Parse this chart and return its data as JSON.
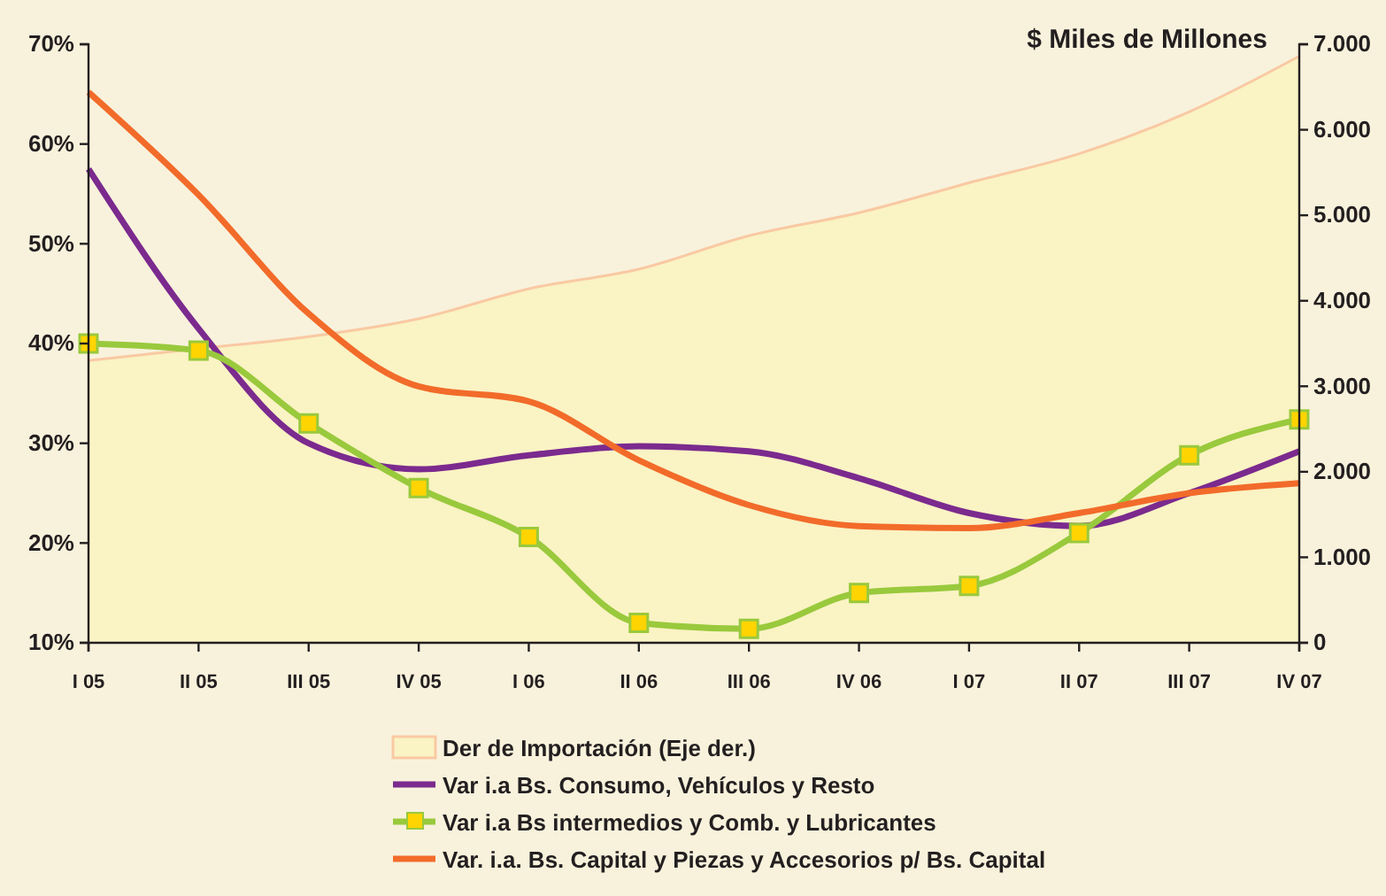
{
  "chart_data": {
    "type": "line",
    "categories": [
      "I 05",
      "II 05",
      "III 05",
      "IV 05",
      "I 06",
      "II 06",
      "III 06",
      "IV 06",
      "I 07",
      "II 07",
      "III 07",
      "IV 07"
    ],
    "series": [
      {
        "name": "Der de Importación (Eje der.)",
        "type": "area",
        "axis": "y2",
        "color": "#f9c9a3",
        "values": [
          3300,
          3440,
          3580,
          3790,
          4140,
          4370,
          4760,
          5030,
          5380,
          5720,
          6210,
          6860
        ]
      },
      {
        "name": "Var i.a  Bs. Consumo, Vehículos y Resto",
        "color": "#7b2a8e",
        "marker": "none",
        "values": [
          57.5,
          41.5,
          30,
          27.4,
          28.8,
          29.7,
          29.2,
          26.5,
          23,
          21.7,
          25,
          29.2
        ]
      },
      {
        "name": "Var i.a  Bs intermedios y Comb. y Lubricantes",
        "color": "#99c93c",
        "marker": "square",
        "values": [
          40,
          39.3,
          32,
          25.5,
          20.6,
          12,
          11.4,
          15,
          15.7,
          21,
          28.8,
          32.4
        ]
      },
      {
        "name": "Var. i.a. Bs. Capital y Piezas y Accesorios p/ Bs. Capital",
        "color": "#f26b2a",
        "marker": "none",
        "values": [
          65.2,
          54.9,
          43,
          35.7,
          34.2,
          28.3,
          23.8,
          21.7,
          21.5,
          23,
          25,
          26
        ]
      }
    ],
    "ylim": [
      10,
      70
    ],
    "yticks": [
      {
        "value": 10,
        "label": "10%"
      },
      {
        "value": 20,
        "label": "20%"
      },
      {
        "value": 30,
        "label": "30%"
      },
      {
        "value": 40,
        "label": "40%"
      },
      {
        "value": 50,
        "label": "50%"
      },
      {
        "value": 60,
        "label": "60%"
      },
      {
        "value": 70,
        "label": "70%"
      }
    ],
    "y2lim": [
      0,
      7000
    ],
    "y2ticks": [
      0,
      {
        "value": 1000,
        "label": "1.000"
      },
      {
        "value": 2000,
        "label": "2.000"
      },
      {
        "value": 3000,
        "label": "3.000"
      },
      {
        "value": 4000,
        "label": "4.000"
      },
      {
        "value": 5000,
        "label": "5.000"
      },
      {
        "value": 6000,
        "label": "6.000"
      },
      {
        "value": 7000,
        "label": "7.000"
      }
    ],
    "y2label": "$ Miles de Millones",
    "legend": "bottom",
    "grid": false
  }
}
